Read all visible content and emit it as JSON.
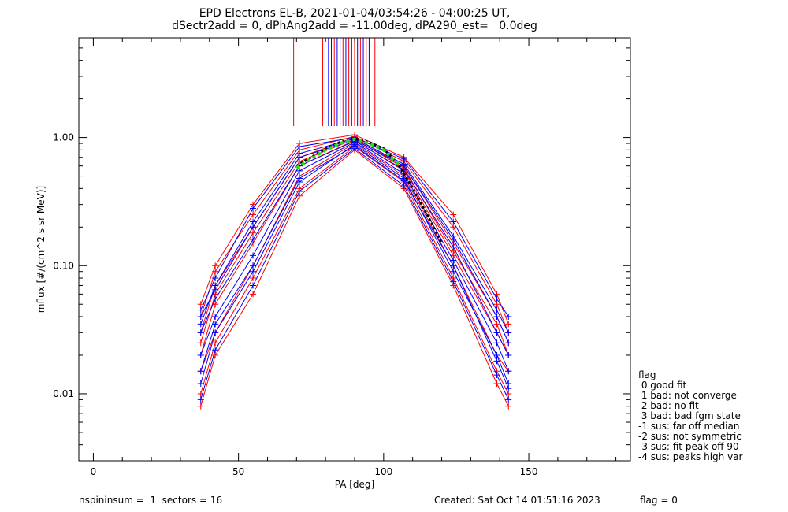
{
  "chart_data": {
    "type": "line",
    "title": "EPD Electrons EL-B, 2021-01-04/03:54:26 - 04:00:25 UT,",
    "subtitle": "dSectr2add = 0, dPhAng2add = -11.00deg, dPA290_est=   0.0deg",
    "xlabel": "PA [deg]",
    "ylabel": "mflux [#/(cm^2 s sr MeV)]",
    "xlim": [
      -5,
      185
    ],
    "ylim": [
      0.003,
      6.0
    ],
    "yscale": "log",
    "xticks": [
      0,
      50,
      100,
      150
    ],
    "xtick_labels": [
      "0",
      "50",
      "100",
      "150"
    ],
    "yticks": [
      0.01,
      0.1,
      1.0
    ],
    "ytick_labels": [
      "0.01",
      "0.10",
      "1.00"
    ],
    "grid": false,
    "pa_bins": [
      37,
      42,
      55,
      71,
      90,
      107,
      124,
      139,
      143
    ],
    "series_groups": [
      {
        "color": "#ff0000",
        "profiles": [
          [
            0.02,
            0.05,
            0.15,
            0.6,
            0.95,
            0.55,
            0.12,
            0.03,
            0.02
          ],
          [
            0.015,
            0.03,
            0.1,
            0.5,
            0.9,
            0.5,
            0.1,
            0.02,
            0.015
          ],
          [
            0.03,
            0.07,
            0.2,
            0.7,
            1.0,
            0.6,
            0.15,
            0.04,
            0.025
          ],
          [
            0.01,
            0.025,
            0.08,
            0.4,
            0.85,
            0.45,
            0.08,
            0.015,
            0.01
          ],
          [
            0.04,
            0.09,
            0.25,
            0.8,
            1.02,
            0.65,
            0.2,
            0.05,
            0.03
          ],
          [
            0.025,
            0.06,
            0.18,
            0.65,
            0.97,
            0.58,
            0.13,
            0.035,
            0.02
          ],
          [
            0.008,
            0.02,
            0.06,
            0.35,
            0.8,
            0.4,
            0.07,
            0.012,
            0.008
          ],
          [
            0.05,
            0.1,
            0.3,
            0.9,
            1.05,
            0.7,
            0.25,
            0.06,
            0.035
          ]
        ]
      },
      {
        "color": "#0000ff",
        "profiles": [
          [
            0.02,
            0.04,
            0.12,
            0.55,
            0.92,
            0.52,
            0.11,
            0.025,
            0.015
          ],
          [
            0.012,
            0.03,
            0.09,
            0.45,
            0.88,
            0.48,
            0.09,
            0.02,
            0.012
          ],
          [
            0.035,
            0.07,
            0.22,
            0.75,
            0.98,
            0.62,
            0.17,
            0.045,
            0.03
          ],
          [
            0.009,
            0.022,
            0.07,
            0.38,
            0.82,
            0.42,
            0.075,
            0.014,
            0.009
          ],
          [
            0.045,
            0.08,
            0.28,
            0.85,
            1.0,
            0.68,
            0.22,
            0.055,
            0.04
          ],
          [
            0.03,
            0.055,
            0.16,
            0.6,
            0.94,
            0.56,
            0.14,
            0.03,
            0.02
          ],
          [
            0.015,
            0.035,
            0.1,
            0.48,
            0.86,
            0.46,
            0.1,
            0.018,
            0.011
          ],
          [
            0.04,
            0.065,
            0.2,
            0.7,
            0.96,
            0.6,
            0.16,
            0.04,
            0.025
          ]
        ]
      }
    ],
    "fit_median": {
      "x": [
        70,
        75,
        80,
        85,
        90,
        95,
        100,
        105,
        110,
        115,
        120
      ],
      "y": [
        0.6,
        0.7,
        0.82,
        0.92,
        0.98,
        0.92,
        0.82,
        0.62,
        0.4,
        0.25,
        0.15
      ]
    },
    "fit_green": {
      "x": [
        70,
        75,
        80,
        85,
        90,
        95,
        100,
        105
      ],
      "y": [
        0.58,
        0.68,
        0.8,
        0.9,
        0.97,
        0.9,
        0.8,
        0.62
      ]
    },
    "peak_lines": {
      "red": [
        69,
        79,
        83,
        86,
        88,
        90,
        92,
        94,
        97
      ],
      "blue": [
        81,
        82,
        84,
        85,
        87,
        89,
        91,
        93,
        95
      ]
    },
    "legend": {
      "title": "flag",
      "entries": [
        " 0 good fit",
        " 1 bad: not converge",
        " 2 bad: no fit",
        " 3 bad: bad fgm state",
        "-1 sus: far off median",
        "-2 sus: not symmetric",
        "-3 sus: fit peak off 90",
        "-4 sus: peaks high var"
      ]
    }
  },
  "footer": {
    "left": "nspininsum =  1  sectors = 16",
    "created": "Created: Sat Oct 14 01:51:16 2023",
    "flag": "flag = 0"
  }
}
